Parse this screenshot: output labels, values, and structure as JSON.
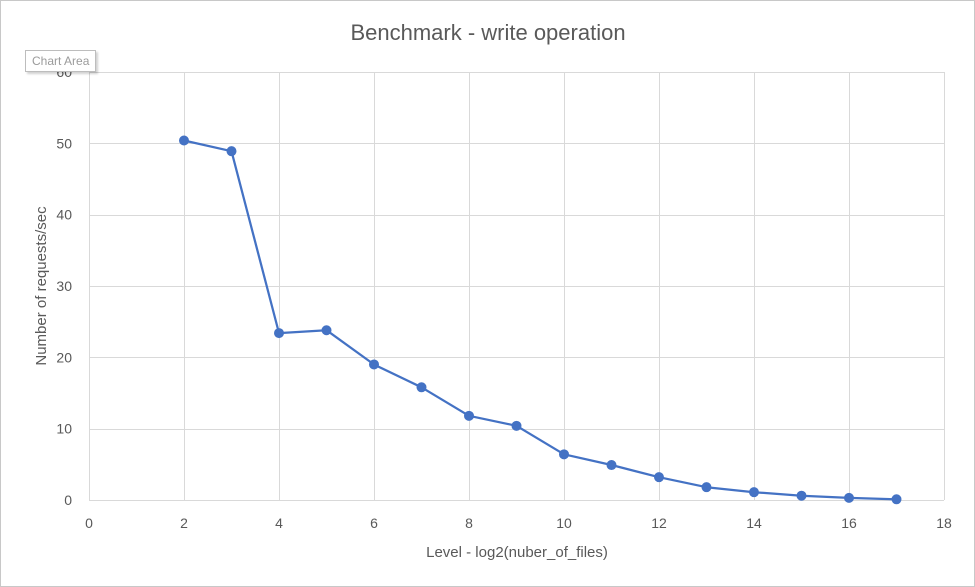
{
  "chart_data": {
    "type": "scatter",
    "title": "Benchmark - write operation",
    "xlabel": "Level - log2(nuber_of_files)",
    "ylabel": "Number of requests/sec",
    "xlim": [
      0,
      18
    ],
    "ylim": [
      0,
      60
    ],
    "xticks": [
      0,
      2,
      4,
      6,
      8,
      10,
      12,
      14,
      16,
      18
    ],
    "yticks": [
      0,
      10,
      20,
      30,
      40,
      50,
      60
    ],
    "grid": true,
    "legend": "none",
    "series": [
      {
        "color": "#4472c4",
        "x": [
          2,
          3,
          4,
          5,
          6,
          7,
          8,
          9,
          10,
          11,
          12,
          13,
          14,
          15,
          16,
          17
        ],
        "y": [
          50.4,
          48.9,
          23.4,
          23.8,
          19.0,
          15.8,
          11.8,
          10.4,
          6.4,
          4.9,
          3.2,
          1.8,
          1.1,
          0.6,
          0.3,
          0.1
        ]
      }
    ]
  },
  "overlay": {
    "chart_area_label": "Chart Area"
  }
}
